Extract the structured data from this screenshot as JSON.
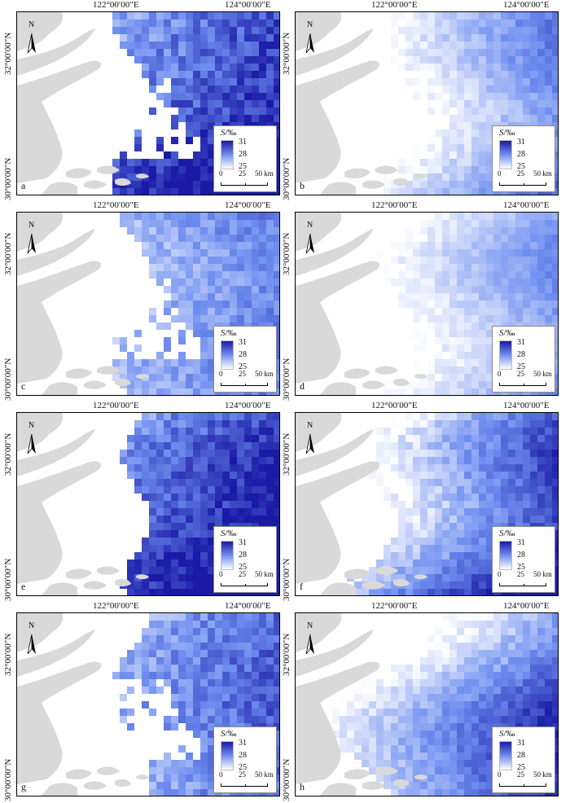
{
  "panels": [
    {
      "id": "a",
      "seed": 11,
      "shape": "left-bay",
      "intensity": 0.9,
      "dark_bottom": true
    },
    {
      "id": "b",
      "seed": 23,
      "shape": "gradient",
      "intensity": 0.55,
      "dark_bottom": false
    },
    {
      "id": "c",
      "seed": 37,
      "shape": "left-bay",
      "intensity": 0.6,
      "dark_bottom": false
    },
    {
      "id": "d",
      "seed": 41,
      "shape": "gradient",
      "intensity": 0.45,
      "dark_bottom": false
    },
    {
      "id": "e",
      "seed": 53,
      "shape": "full",
      "intensity": 0.95,
      "dark_bottom": true
    },
    {
      "id": "f",
      "seed": 67,
      "shape": "gradient",
      "intensity": 0.7,
      "dark_bottom": true
    },
    {
      "id": "g",
      "seed": 71,
      "shape": "left-bay",
      "intensity": 0.75,
      "dark_bottom": false
    },
    {
      "id": "h",
      "seed": 83,
      "shape": "gradient",
      "intensity": 0.6,
      "dark_bottom": true
    }
  ],
  "axes": {
    "lon_left": "122°00′00″E",
    "lon_right": "124°00′00″E",
    "lat_top": "32°00′00″N",
    "lat_bottom": "30°00′00″N"
  },
  "legend": {
    "title_var": "S",
    "title_unit": "/‰",
    "ticks": [
      "31",
      "28",
      "25"
    ],
    "colors": {
      "max": "#1a1aa6",
      "mid": "#6f8ff0",
      "min": "#ffffff"
    }
  },
  "scale_bar": {
    "labels": [
      "0",
      "25",
      "50 km"
    ]
  },
  "north_label": "N",
  "land_color": "#d9d9d9"
}
